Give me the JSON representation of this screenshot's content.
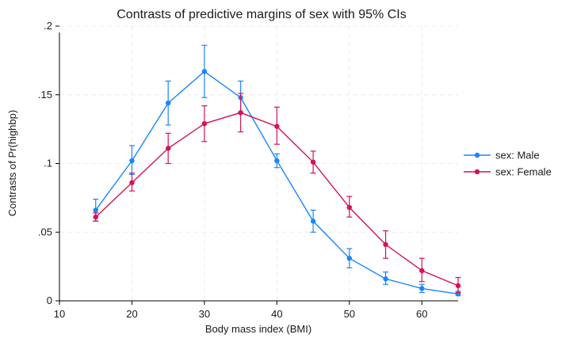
{
  "chart_data": {
    "type": "line",
    "title": "Contrasts of predictive margins of sex with 95% CIs",
    "xlabel": "Body mass index (BMI)",
    "ylabel": "Contrasts of Pr(highbp)",
    "xlim": [
      10,
      65
    ],
    "ylim": [
      0,
      0.2
    ],
    "x_ticks": [
      10,
      20,
      30,
      40,
      50,
      60
    ],
    "x_tick_labels": [
      "10",
      "20",
      "30",
      "40",
      "50",
      "60"
    ],
    "y_ticks": [
      0,
      0.05,
      0.1,
      0.15,
      0.2
    ],
    "y_tick_labels": [
      "0",
      ".05",
      ".1",
      ".15",
      ".2"
    ],
    "grid": true,
    "legend_position": "right",
    "x": [
      15,
      20,
      25,
      30,
      35,
      40,
      45,
      50,
      55,
      60,
      65
    ],
    "series": [
      {
        "name": "sex: Male",
        "color": "#1a85ff",
        "values": [
          0.066,
          0.102,
          0.144,
          0.167,
          0.148,
          0.102,
          0.058,
          0.031,
          0.016,
          0.009,
          0.005
        ],
        "ci_low": [
          0.058,
          0.092,
          0.128,
          0.148,
          0.137,
          0.097,
          0.05,
          0.024,
          0.012,
          0.006,
          0.004
        ],
        "ci_high": [
          0.074,
          0.113,
          0.16,
          0.186,
          0.16,
          0.107,
          0.066,
          0.038,
          0.021,
          0.012,
          0.007
        ]
      },
      {
        "name": "sex: Female",
        "color": "#d41159",
        "values": [
          0.061,
          0.086,
          0.111,
          0.129,
          0.137,
          0.127,
          0.101,
          0.068,
          0.041,
          0.022,
          0.011
        ],
        "ci_low": [
          0.058,
          0.08,
          0.1,
          0.116,
          0.123,
          0.114,
          0.093,
          0.061,
          0.031,
          0.014,
          0.006
        ],
        "ci_high": [
          0.064,
          0.093,
          0.122,
          0.142,
          0.151,
          0.141,
          0.109,
          0.076,
          0.051,
          0.031,
          0.017
        ]
      }
    ]
  }
}
